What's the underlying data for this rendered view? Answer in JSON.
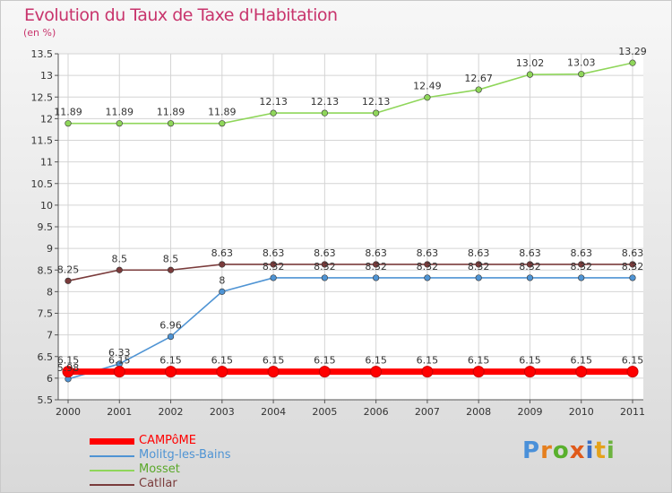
{
  "title": "Evolution du Taux de Taxe d'Habitation",
  "unit": "(en %)",
  "brand": {
    "letters": [
      "P",
      "r",
      "o",
      "x",
      "i",
      "t",
      "i"
    ],
    "colors": [
      "#4a90d9",
      "#e57f1e",
      "#59b02d",
      "#e05a1a",
      "#3b6fc4",
      "#e4a21b",
      "#6cb33f"
    ]
  },
  "chart_data": {
    "type": "line",
    "title": "Evolution du Taux de Taxe d'Habitation",
    "ylabel": "(en %)",
    "xlabel": "",
    "x": [
      "2000",
      "2001",
      "2002",
      "2003",
      "2004",
      "2005",
      "2006",
      "2007",
      "2008",
      "2009",
      "2010",
      "2011"
    ],
    "ylim": [
      5.5,
      13.5
    ],
    "yticks": [
      "5.5",
      "6",
      "6.5",
      "7",
      "7.5",
      "8",
      "8.5",
      "9",
      "9.5",
      "10",
      "10.5",
      "11",
      "11.5",
      "12",
      "12.5",
      "13",
      "13.5"
    ],
    "grid": true,
    "legend_position": "bottom-left",
    "series": [
      {
        "name": "CAMPôME",
        "color": "#ff0000",
        "values": [
          6.15,
          6.15,
          6.15,
          6.15,
          6.15,
          6.15,
          6.15,
          6.15,
          6.15,
          6.15,
          6.15,
          6.15
        ],
        "labels": [
          "6.15",
          "6.15",
          "6.15",
          "6.15",
          "6.15",
          "6.15",
          "6.15",
          "6.15",
          "6.15",
          "6.15",
          "6.15",
          "6.15"
        ]
      },
      {
        "name": "Molitg-les-Bains",
        "color": "#4f94d4",
        "values": [
          5.98,
          6.33,
          6.96,
          8,
          8.32,
          8.32,
          8.32,
          8.32,
          8.32,
          8.32,
          8.32,
          8.32
        ],
        "labels": [
          "5.98",
          "6.33",
          "6.96",
          "8",
          "8.32",
          "8.32",
          "8.32",
          "8.32",
          "8.32",
          "8.32",
          "8.32",
          "8.32"
        ]
      },
      {
        "name": "Mosset",
        "color": "#8fd65a",
        "values": [
          11.89,
          11.89,
          11.89,
          11.89,
          12.13,
          12.13,
          12.13,
          12.49,
          12.67,
          13.02,
          13.03,
          13.29
        ],
        "labels": [
          "11.89",
          "11.89",
          "11.89",
          "11.89",
          "12.13",
          "12.13",
          "12.13",
          "12.49",
          "12.67",
          "13.02",
          "13.03",
          "13.29"
        ]
      },
      {
        "name": "Catllar",
        "color": "#7a3b3b",
        "values": [
          8.25,
          8.5,
          8.5,
          8.63,
          8.63,
          8.63,
          8.63,
          8.63,
          8.63,
          8.63,
          8.63,
          8.63
        ],
        "labels": [
          "8.25",
          "8.5",
          "8.5",
          "8.63",
          "8.63",
          "8.63",
          "8.63",
          "8.63",
          "8.63",
          "8.63",
          "8.63",
          "8.63"
        ]
      }
    ]
  }
}
